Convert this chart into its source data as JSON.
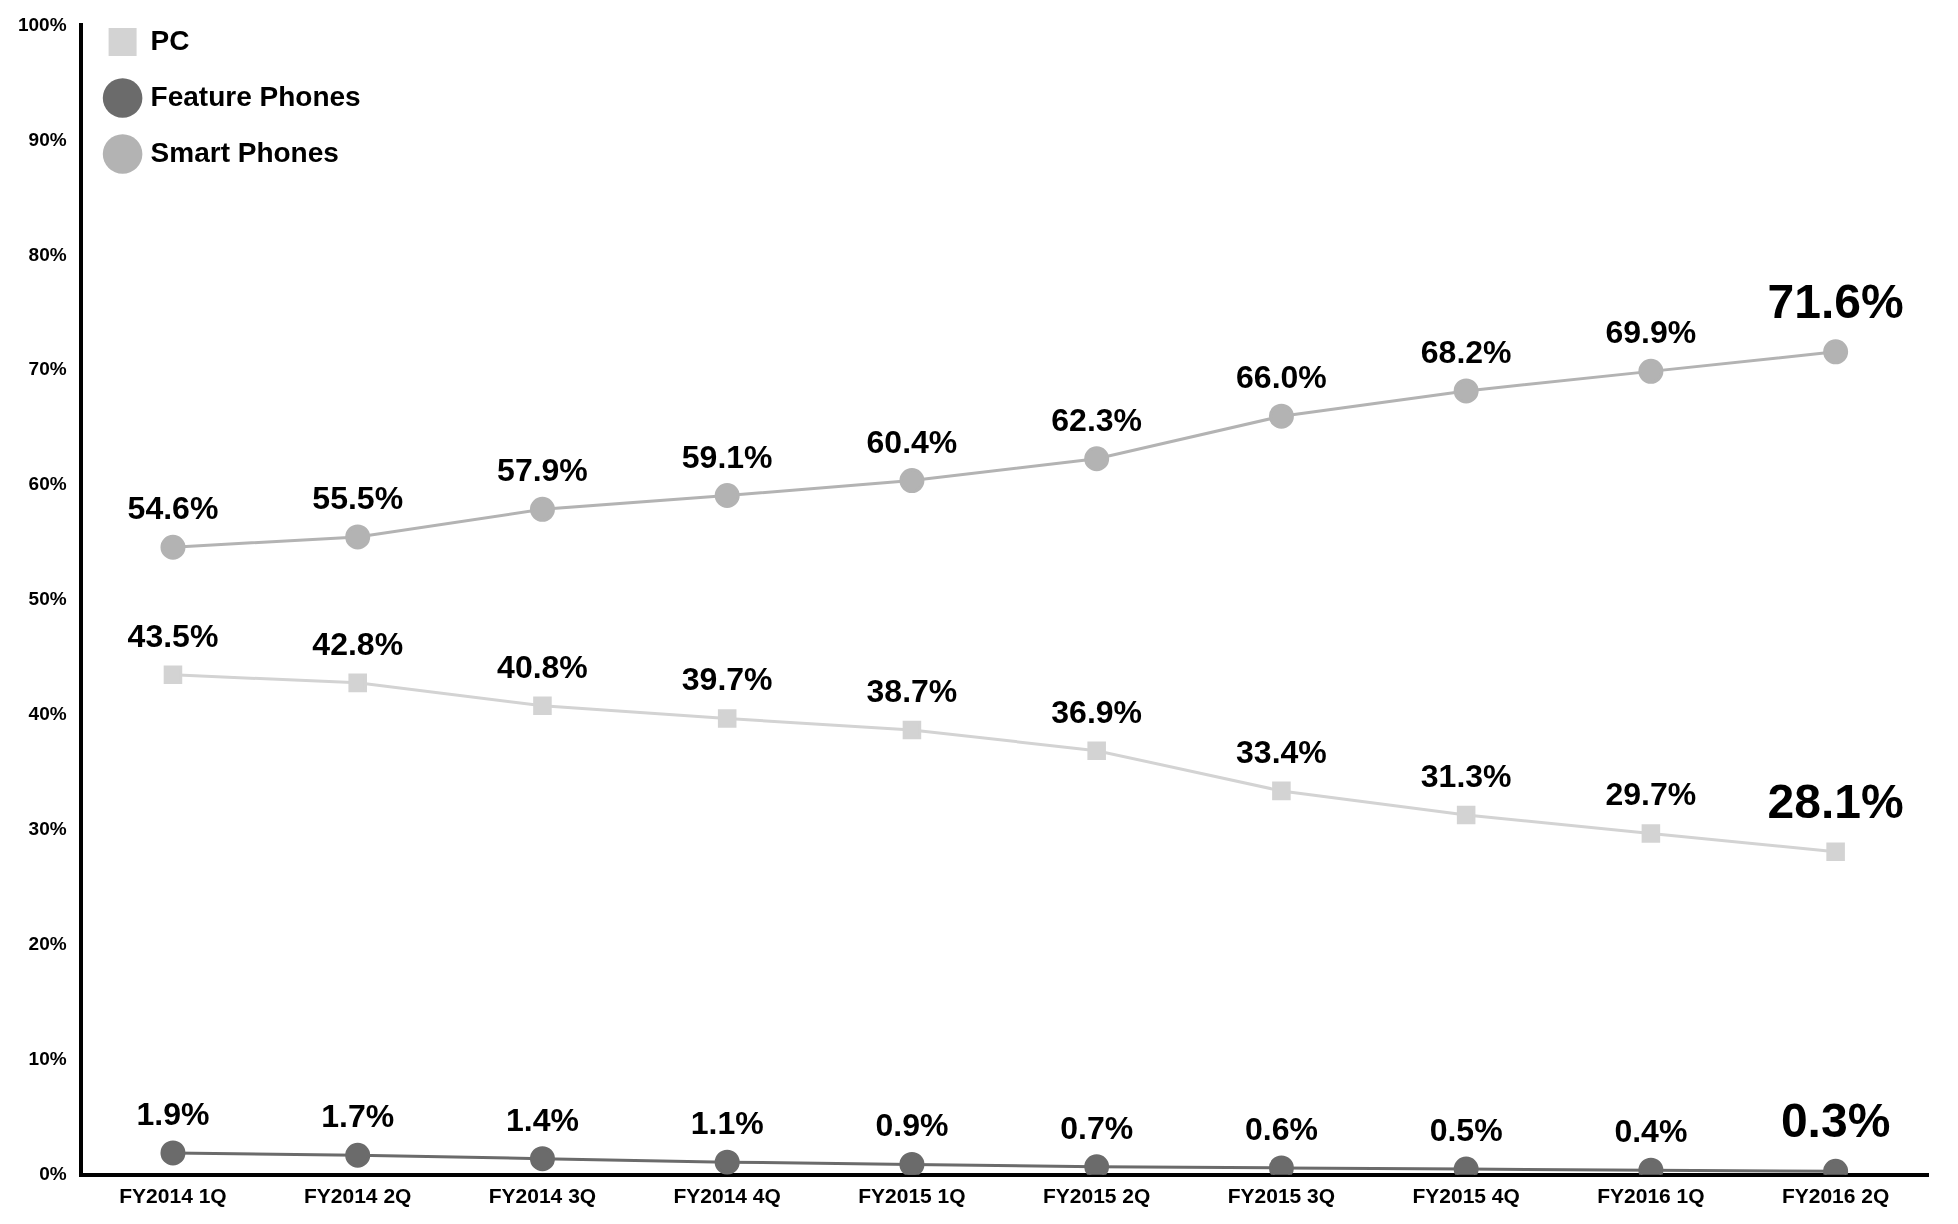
{
  "chart_data": {
    "type": "line",
    "categories": [
      "FY2014 1Q",
      "FY2014 2Q",
      "FY2014 3Q",
      "FY2014 4Q",
      "FY2015 1Q",
      "FY2015 2Q",
      "FY2015 3Q",
      "FY2015 4Q",
      "FY2016 1Q",
      "FY2016 2Q"
    ],
    "series": [
      {
        "name": "PC",
        "color": "#d3d3d3",
        "marker": "square",
        "values": [
          43.5,
          42.8,
          40.8,
          39.7,
          38.7,
          36.9,
          33.4,
          31.3,
          29.7,
          28.1
        ],
        "value_labels": [
          "43.5%",
          "42.8%",
          "40.8%",
          "39.7%",
          "38.7%",
          "36.9%",
          "33.4%",
          "31.3%",
          "29.7%",
          "28.1%"
        ]
      },
      {
        "name": "Feature Phones",
        "color": "#6b6b6b",
        "marker": "circle",
        "values": [
          1.9,
          1.7,
          1.4,
          1.1,
          0.9,
          0.7,
          0.6,
          0.5,
          0.4,
          0.3
        ],
        "value_labels": [
          "1.9%",
          "1.7%",
          "1.4%",
          "1.1%",
          "0.9%",
          "0.7%",
          "0.6%",
          "0.5%",
          "0.4%",
          "0.3%"
        ]
      },
      {
        "name": "Smart Phones",
        "color": "#b3b3b3",
        "marker": "circle",
        "values": [
          54.6,
          55.5,
          57.9,
          59.1,
          60.4,
          62.3,
          66.0,
          68.2,
          69.9,
          71.6
        ],
        "value_labels": [
          "54.6%",
          "55.5%",
          "57.9%",
          "59.1%",
          "60.4%",
          "62.3%",
          "66.0%",
          "68.2%",
          "69.9%",
          "71.6%"
        ]
      }
    ],
    "ylim": [
      0,
      100
    ],
    "yticks": [
      {
        "value": 0,
        "label": "0%"
      },
      {
        "value": 10,
        "label": "10%"
      },
      {
        "value": 20,
        "label": "20%"
      },
      {
        "value": 30,
        "label": "30%"
      },
      {
        "value": 40,
        "label": "40%"
      },
      {
        "value": 50,
        "label": "50%"
      },
      {
        "value": 60,
        "label": "60%"
      },
      {
        "value": 70,
        "label": "70%"
      },
      {
        "value": 80,
        "label": "80%"
      },
      {
        "value": 90,
        "label": "90%"
      },
      {
        "value": 100,
        "label": "100%"
      }
    ],
    "grid": false,
    "legend": "top left"
  }
}
